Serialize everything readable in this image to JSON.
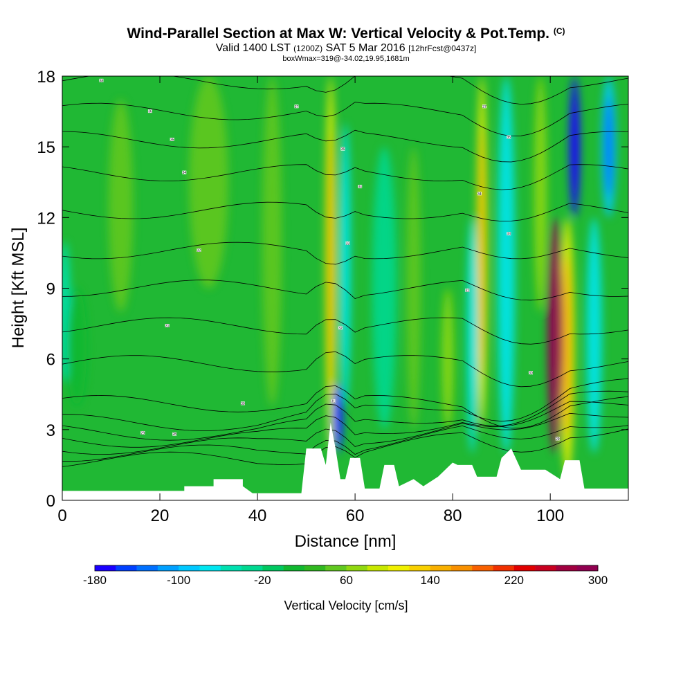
{
  "titles": {
    "main": "Wind-Parallel Section at Max W: Vertical Velocity & Pot.Temp.",
    "copyright": "(C)",
    "valid_a": "Valid 1400 LST",
    "valid_b": "(1200Z)",
    "valid_c": "SAT 5 Mar 2016",
    "valid_d": "[12hrFcst@0437z]",
    "box": "boxWmax=319@-34.02,19.95,1681m"
  },
  "chart_data": {
    "type": "heatmap",
    "title": "Wind-Parallel Section at Max W: Vertical Velocity & Pot.Temp.",
    "xlabel": "Distance [nm]",
    "ylabel": "Height [Kft MSL]",
    "xlim": [
      0,
      116
    ],
    "ylim": [
      0,
      18
    ],
    "xticks": [
      0,
      20,
      40,
      60,
      80,
      100
    ],
    "yticks": [
      0,
      3,
      6,
      9,
      12,
      15,
      18
    ],
    "colorbar": {
      "label": "Vertical Velocity [cm/s]",
      "min": -180,
      "max": 300,
      "step": 20,
      "ticks": [
        -180,
        -100,
        -20,
        60,
        140,
        220,
        300
      ],
      "colors": [
        "#1a00ff",
        "#0040ff",
        "#0070ff",
        "#00a0ff",
        "#00c8ff",
        "#00e6f0",
        "#00e0b0",
        "#00d890",
        "#00c860",
        "#10b830",
        "#30b820",
        "#60c820",
        "#90d810",
        "#c8e800",
        "#f0f000",
        "#f8d000",
        "#f8b000",
        "#f89000",
        "#f86000",
        "#f03000",
        "#e00000",
        "#c80020",
        "#a00040",
        "#900050"
      ]
    },
    "features": [
      {
        "name": "updraft",
        "x": 55,
        "y_range": [
          2,
          18
        ],
        "max_w": 100
      },
      {
        "name": "downdraft",
        "x": 56.5,
        "y_range": [
          2,
          5
        ],
        "min_w": -160
      },
      {
        "name": "downdraft",
        "x": 58,
        "y_range": [
          4,
          16
        ],
        "min_w": -80
      },
      {
        "name": "updraft",
        "x": 86,
        "y_range": [
          3,
          18
        ],
        "max_w": 100
      },
      {
        "name": "downdraft",
        "x": 84,
        "y_range": [
          2,
          12
        ],
        "min_w": -80
      },
      {
        "name": "updraft",
        "x": 101,
        "y_range": [
          2,
          12
        ],
        "max_w": 300
      },
      {
        "name": "downdraft",
        "x": 105,
        "y_range": [
          12,
          18
        ],
        "min_w": -180
      }
    ],
    "isentrope_labels": [
      {
        "text": "38",
        "x": 8,
        "y": 17.8
      },
      {
        "text": "36",
        "x": 18,
        "y": 16.5
      },
      {
        "text": "35",
        "x": 22.5,
        "y": 15.3
      },
      {
        "text": "34",
        "x": 25,
        "y": 13.9
      },
      {
        "text": "32",
        "x": 28,
        "y": 10.6
      },
      {
        "text": "31",
        "x": 21.5,
        "y": 7.4
      },
      {
        "text": "30",
        "x": 37,
        "y": 4.1
      },
      {
        "text": "29",
        "x": 16.5,
        "y": 2.85
      },
      {
        "text": "28",
        "x": 23,
        "y": 2.8
      },
      {
        "text": "37",
        "x": 48,
        "y": 16.7
      },
      {
        "text": "36",
        "x": 57.5,
        "y": 14.9
      },
      {
        "text": "34",
        "x": 61,
        "y": 13.3
      },
      {
        "text": "33",
        "x": 58.5,
        "y": 10.9
      },
      {
        "text": "32",
        "x": 57,
        "y": 7.3
      },
      {
        "text": "31",
        "x": 55.5,
        "y": 4.2
      },
      {
        "text": "37",
        "x": 86.5,
        "y": 16.7
      },
      {
        "text": "35",
        "x": 91.5,
        "y": 15.4
      },
      {
        "text": "34",
        "x": 85.5,
        "y": 13.0
      },
      {
        "text": "33",
        "x": 91.5,
        "y": 11.3
      },
      {
        "text": "32",
        "x": 83,
        "y": 8.9
      },
      {
        "text": "30",
        "x": 96,
        "y": 5.4
      },
      {
        "text": "29",
        "x": 101.5,
        "y": 2.6
      }
    ]
  }
}
